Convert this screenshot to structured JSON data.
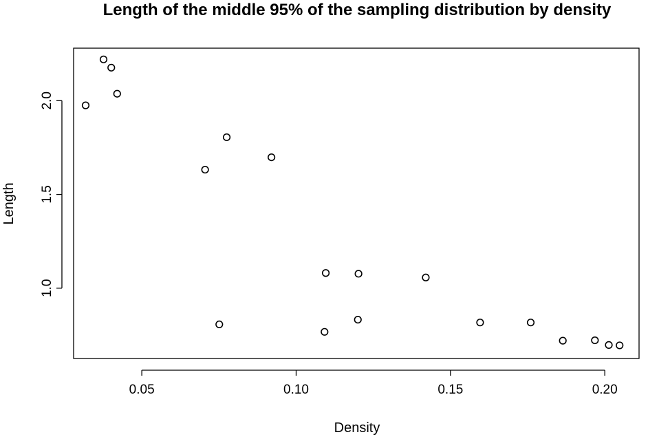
{
  "chart_data": {
    "type": "scatter",
    "title": "Length of the middle 95% of the sampling distribution by density",
    "xlabel": "Density",
    "ylabel": "Length",
    "xlim": [
      0.0279,
      0.2111
    ],
    "ylim": [
      0.625,
      2.28
    ],
    "xticks": [
      0.05,
      0.1,
      0.15,
      0.2
    ],
    "xtick_labels": [
      "0.05",
      "0.10",
      "0.15",
      "0.20"
    ],
    "yticks": [
      1.0,
      1.5,
      2.0
    ],
    "ytick_labels": [
      "1.0",
      "1.5",
      "2.0"
    ],
    "grid": false,
    "legend": false,
    "marker": "open-circle",
    "points": [
      {
        "x": 0.0318,
        "y": 1.975
      },
      {
        "x": 0.0376,
        "y": 2.22
      },
      {
        "x": 0.0401,
        "y": 2.176
      },
      {
        "x": 0.042,
        "y": 2.037
      },
      {
        "x": 0.0705,
        "y": 1.632
      },
      {
        "x": 0.0751,
        "y": 0.807
      },
      {
        "x": 0.0775,
        "y": 1.805
      },
      {
        "x": 0.092,
        "y": 1.698
      },
      {
        "x": 0.1092,
        "y": 0.767
      },
      {
        "x": 0.1096,
        "y": 1.081
      },
      {
        "x": 0.12,
        "y": 0.832
      },
      {
        "x": 0.1202,
        "y": 1.077
      },
      {
        "x": 0.142,
        "y": 1.057
      },
      {
        "x": 0.1596,
        "y": 0.817
      },
      {
        "x": 0.176,
        "y": 0.817
      },
      {
        "x": 0.1864,
        "y": 0.72
      },
      {
        "x": 0.1968,
        "y": 0.722
      },
      {
        "x": 0.2013,
        "y": 0.697
      },
      {
        "x": 0.2048,
        "y": 0.695
      }
    ]
  }
}
